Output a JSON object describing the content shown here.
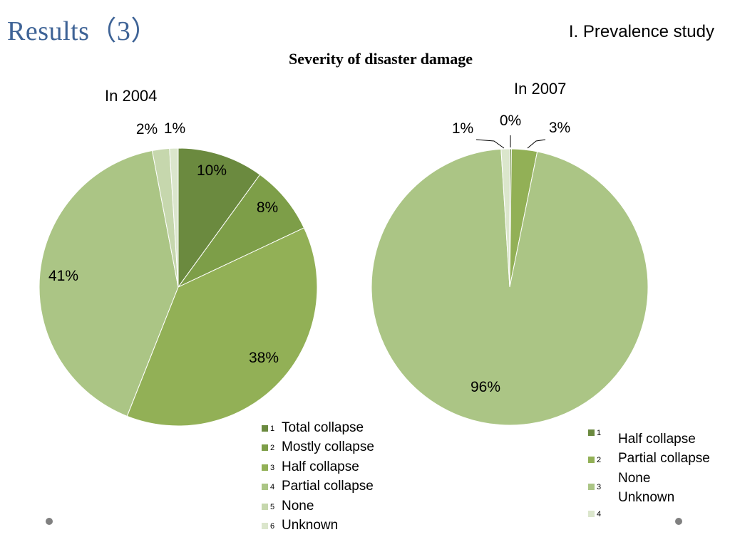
{
  "header": {
    "title": "Results（3）",
    "section": "I. Prevalence study"
  },
  "chart_heading": "Severity of disaster damage",
  "chart_data": [
    {
      "type": "pie",
      "title": "In 2004",
      "categories": [
        "Total collapse",
        "Mostly collapse",
        "Half collapse",
        "Partial collapse",
        "None",
        "Unknown"
      ],
      "legend_numbers": [
        "1",
        "2",
        "3",
        "4",
        "5",
        "6"
      ],
      "values": [
        10,
        8,
        38,
        41,
        2,
        1
      ],
      "labels": [
        "10%",
        "8%",
        "38%",
        "41%",
        "2%",
        "1%"
      ],
      "colors": [
        "#6b8a3f",
        "#7d9e48",
        "#92b056",
        "#abc585",
        "#c6d7ad",
        "#dbe6cc"
      ],
      "legend_position": "bottom"
    },
    {
      "type": "pie",
      "title": "In 2007",
      "categories": [
        "Half collapse",
        "Partial collapse",
        "None",
        "Unknown"
      ],
      "legend_numbers": [
        "1",
        "2",
        "3",
        "4"
      ],
      "values": [
        0.2,
        3,
        96,
        1
      ],
      "labels": [
        "0%",
        "3%",
        "96%",
        "1%"
      ],
      "colors": [
        "#6b8a3f",
        "#92b056",
        "#abc585",
        "#dbe6cc"
      ],
      "legend_position": "bottom-right"
    }
  ]
}
